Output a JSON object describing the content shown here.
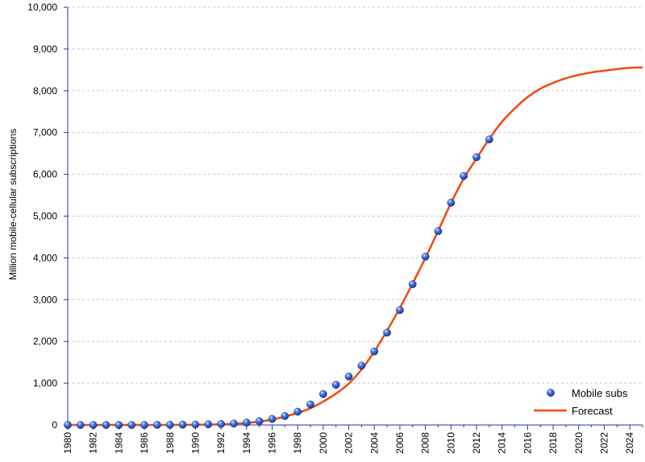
{
  "chart_data": {
    "type": "line",
    "title": "",
    "ylabel": "Million mobile-cellular subscriptions",
    "xlabel": "",
    "xlim": [
      1980,
      2025
    ],
    "ylim": [
      0,
      10000
    ],
    "y_ticks": [
      0,
      1000,
      2000,
      3000,
      4000,
      5000,
      6000,
      7000,
      8000,
      9000,
      10000
    ],
    "y_tick_labels": [
      "0",
      "1,000",
      "2,000",
      "3,000",
      "4,000",
      "5,000",
      "6,000",
      "7,000",
      "8,000",
      "9,000",
      "10,000"
    ],
    "x_ticks": [
      1980,
      1982,
      1984,
      1986,
      1988,
      1990,
      1992,
      1994,
      1996,
      1998,
      2000,
      2002,
      2004,
      2006,
      2008,
      2010,
      2012,
      2014,
      2016,
      2018,
      2020,
      2022,
      2024
    ],
    "x_tick_labels": [
      "1980",
      "1982",
      "1984",
      "1986",
      "1988",
      "1990",
      "1992",
      "1994",
      "1996",
      "1998",
      "2000",
      "2002",
      "2004",
      "2006",
      "2008",
      "2010",
      "2012",
      "2014",
      "2016",
      "2018",
      "2020",
      "2022",
      "2024"
    ],
    "grid": "horizontal dashed",
    "legend_position": "bottom-right",
    "series": [
      {
        "name": "Mobile subs",
        "kind": "scatter",
        "color": "#1f4fc8",
        "x": [
          1980,
          1981,
          1982,
          1983,
          1984,
          1985,
          1986,
          1987,
          1988,
          1989,
          1990,
          1991,
          1992,
          1993,
          1994,
          1995,
          1996,
          1997,
          1998,
          1999,
          2000,
          2001,
          2002,
          2003,
          2004,
          2005,
          2006,
          2007,
          2008,
          2009,
          2010,
          2011,
          2012,
          2013
        ],
        "y": [
          0,
          0,
          0,
          0,
          0,
          0,
          0,
          2,
          4,
          7,
          11,
          16,
          23,
          34,
          56,
          91,
          145,
          215,
          318,
          490,
          740,
          962,
          1160,
          1420,
          1760,
          2210,
          2750,
          3370,
          4030,
          4640,
          5320,
          5960,
          6410,
          6835
        ]
      },
      {
        "name": "Forecast",
        "kind": "line",
        "color": "#f04a10",
        "x": [
          1980,
          1982,
          1984,
          1986,
          1988,
          1990,
          1992,
          1993,
          1994,
          1995,
          1996,
          1997,
          1998,
          1999,
          2000,
          2001,
          2002,
          2003,
          2004,
          2005,
          2006,
          2007,
          2008,
          2009,
          2010,
          2011,
          2012,
          2013,
          2014,
          2015,
          2016,
          2017,
          2018,
          2019,
          2020,
          2021,
          2022,
          2023,
          2024,
          2025
        ],
        "y": [
          0,
          0,
          0,
          0,
          0,
          5,
          15,
          30,
          50,
          80,
          130,
          200,
          290,
          400,
          560,
          750,
          990,
          1330,
          1760,
          2260,
          2800,
          3390,
          4000,
          4650,
          5310,
          5900,
          6380,
          6850,
          7260,
          7580,
          7850,
          8050,
          8190,
          8300,
          8380,
          8440,
          8480,
          8520,
          8550,
          8560
        ]
      }
    ]
  }
}
